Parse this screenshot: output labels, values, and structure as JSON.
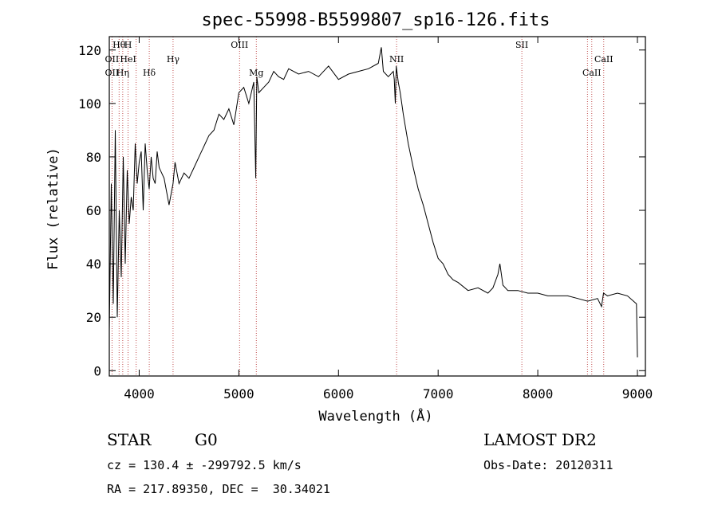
{
  "chart_data": {
    "type": "line",
    "title": "spec-55998-B5599807_sp16-126.fits",
    "xlabel": "Wavelength (Å)",
    "ylabel": "Flux (relative)",
    "xlim": [
      3700,
      9080
    ],
    "ylim": [
      -2,
      125
    ],
    "x_ticks": [
      4000,
      5000,
      6000,
      7000,
      8000,
      9000
    ],
    "y_ticks": [
      0,
      20,
      40,
      60,
      80,
      100,
      120
    ],
    "grid": false,
    "legend": "none",
    "series": [
      {
        "x": [
          3700,
          3720,
          3740,
          3760,
          3780,
          3800,
          3820,
          3840,
          3860,
          3880,
          3900,
          3920,
          3940,
          3960,
          3980,
          4000,
          4020,
          4040,
          4060,
          4080,
          4100,
          4120,
          4140,
          4160,
          4180,
          4200,
          4250,
          4300,
          4340,
          4360,
          4400,
          4450,
          4500,
          4550,
          4600,
          4650,
          4700,
          4750,
          4800,
          4850,
          4900,
          4950,
          5000,
          5050,
          5100,
          5150,
          5170,
          5180,
          5200,
          5250,
          5300,
          5350,
          5400,
          5450,
          5500,
          5600,
          5700,
          5800,
          5900,
          6000,
          6100,
          6200,
          6300,
          6400,
          6430,
          6450,
          6500,
          6550,
          6560,
          6570,
          6580,
          6600,
          6620,
          6650,
          6700,
          6750,
          6800,
          6850,
          6900,
          6950,
          7000,
          7050,
          7100,
          7150,
          7200,
          7300,
          7400,
          7500,
          7550,
          7600,
          7620,
          7650,
          7700,
          7800,
          7900,
          8000,
          8100,
          8200,
          8300,
          8400,
          8500,
          8600,
          8640,
          8660,
          8700,
          8800,
          8900,
          8990,
          9000
        ],
        "y": [
          15,
          70,
          25,
          90,
          20,
          60,
          35,
          80,
          40,
          75,
          55,
          65,
          60,
          85,
          70,
          78,
          82,
          60,
          85,
          75,
          68,
          80,
          72,
          70,
          82,
          76,
          72,
          62,
          70,
          78,
          70,
          74,
          72,
          76,
          80,
          84,
          88,
          90,
          96,
          94,
          98,
          92,
          104,
          106,
          100,
          108,
          72,
          110,
          104,
          106,
          108,
          112,
          110,
          109,
          113,
          111,
          112,
          110,
          114,
          109,
          111,
          112,
          113,
          115,
          121,
          112,
          110,
          112,
          109,
          100,
          114,
          108,
          104,
          96,
          85,
          76,
          68,
          62,
          55,
          48,
          42,
          40,
          36,
          34,
          33,
          30,
          31,
          29,
          31,
          36,
          40,
          32,
          30,
          30,
          29,
          29,
          28,
          28,
          28,
          27,
          26,
          27,
          24,
          29,
          28,
          29,
          28,
          25,
          5
        ]
      }
    ],
    "annotations": [
      {
        "label": "Hθ",
        "x": 3798,
        "row": 1
      },
      {
        "label": "H",
        "x": 3889,
        "row": 1
      },
      {
        "label": "OII",
        "x": 3727,
        "row": 2
      },
      {
        "label": "HeI",
        "x": 3889,
        "row": 2
      },
      {
        "label": "Hγ",
        "x": 4340,
        "row": 2
      },
      {
        "label": "OIII",
        "x": 5007,
        "row": 1
      },
      {
        "label": "NII",
        "x": 6583,
        "row": 2
      },
      {
        "label": "SII",
        "x": 7840,
        "row": 1
      },
      {
        "label": "CaII",
        "x": 8662,
        "row": 2
      },
      {
        "label": "OII",
        "x": 3727,
        "row": 3
      },
      {
        "label": "Hη",
        "x": 3835,
        "row": 3
      },
      {
        "label": "Hδ",
        "x": 4101,
        "row": 3
      },
      {
        "label": "Mg",
        "x": 5175,
        "row": 3
      },
      {
        "label": "CaII",
        "x": 8542,
        "row": 3
      }
    ],
    "line_markers": [
      3727,
      3798,
      3835,
      3889,
      3970,
      4101,
      4340,
      5007,
      5175,
      6583,
      7840,
      8498,
      8542,
      8662
    ]
  },
  "info": {
    "class_label": "STAR",
    "subclass": "G0",
    "survey": "LAMOST DR2",
    "cz_text": "cz = 130.4 ± -299792.5 km/s",
    "obs_date": "Obs-Date: 20120311",
    "coords": "RA = 217.89350, DEC =  30.34021"
  }
}
